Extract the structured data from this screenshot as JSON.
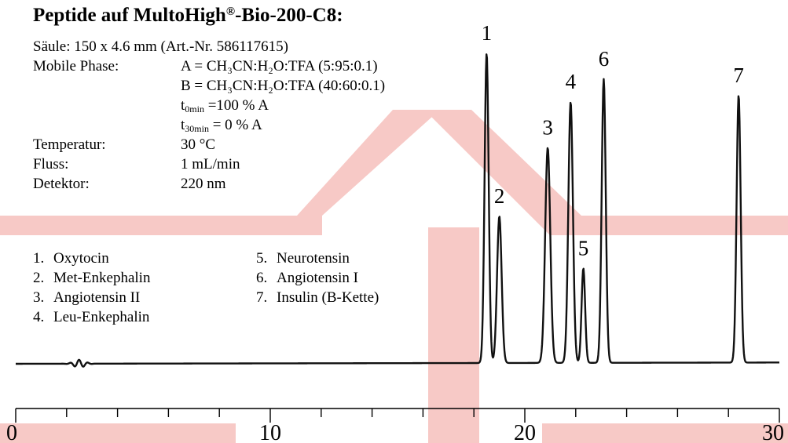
{
  "title": "Peptide auf MultoHigh",
  "title_suffix": "-Bio-200-C8:",
  "title_mark": "®",
  "column": "Säule: 150 x 4.6 mm (Art.-Nr. 586117615)",
  "mobile_phase": {
    "label": "Mobile Phase:",
    "a": "A = CH₃CN:H₂O:TFA (5:95:0.1)",
    "b": "B = CH₃CN:H₂O:TFA (40:60:0.1)",
    "t0_prefix": "t",
    "t0_sub": "0min",
    "t0_value": " =100 % A",
    "t30_prefix": "t",
    "t30_sub": "30min",
    "t30_value": " = 0 % A"
  },
  "conditions": [
    {
      "label": "Temperatur:",
      "value": "30 °C"
    },
    {
      "label": "Fluss:",
      "value": "1 mL/min"
    },
    {
      "label": "Detektor:",
      "value": "220 nm"
    }
  ],
  "legend": [
    {
      "num": "1.",
      "name": "Oxytocin"
    },
    {
      "num": "2.",
      "name": "Met-Enkephalin"
    },
    {
      "num": "3.",
      "name": "Angiotensin II"
    },
    {
      "num": "4.",
      "name": "Leu-Enkephalin"
    },
    {
      "num": "5.",
      "name": "Neurotensin"
    },
    {
      "num": "6.",
      "name": "Angiotensin I"
    },
    {
      "num": "7.",
      "name": "Insulin (B-Kette)"
    }
  ],
  "colors": {
    "watermark": "#f7c9c6",
    "line": "#111111"
  },
  "chart_data": {
    "type": "line",
    "title": "",
    "xlabel": "",
    "ylabel": "",
    "xlim": [
      0,
      30
    ],
    "x_ticks": [
      0,
      10,
      20,
      30
    ],
    "x_minor_tick_step": 2,
    "grid": false,
    "baseline": 0.0,
    "peaks": [
      {
        "label": "1",
        "x": 18.5,
        "height": 0.95,
        "width": 0.08
      },
      {
        "label": "2",
        "x": 19.0,
        "height": 0.45,
        "width": 0.09
      },
      {
        "label": "3",
        "x": 20.9,
        "height": 0.66,
        "width": 0.1
      },
      {
        "label": "4",
        "x": 21.8,
        "height": 0.8,
        "width": 0.09
      },
      {
        "label": "5",
        "x": 22.3,
        "height": 0.29,
        "width": 0.07
      },
      {
        "label": "6",
        "x": 23.1,
        "height": 0.87,
        "width": 0.08
      },
      {
        "label": "7",
        "x": 28.4,
        "height": 0.82,
        "width": 0.08
      }
    ]
  }
}
